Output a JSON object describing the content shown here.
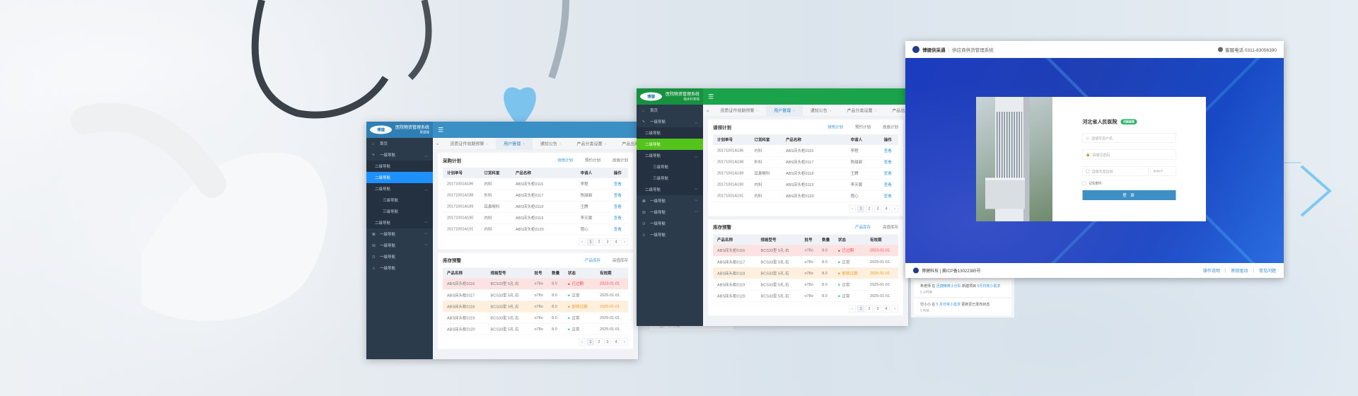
{
  "colors": {
    "panel_a_accent": "#3a8fc4",
    "panel_a_active": "#1e90ff",
    "panel_b_accent": "#1aa34a",
    "panel_b_active": "#52c41a",
    "login_blue": "#1c3cc0",
    "login_button": "#3d8fc6"
  },
  "admin_shared": {
    "logo_text": "博健",
    "system_name": "医院物资管理系统",
    "sidebar": [
      {
        "label": "首页",
        "level": 1,
        "icon": "home-icon"
      },
      {
        "label": "一级导航",
        "level": 1,
        "icon": "edit-icon",
        "chevron": "up"
      },
      {
        "label": "二级导航",
        "level": 2
      },
      {
        "label": "二级导航",
        "level": 2,
        "active": true
      },
      {
        "label": "二级导航",
        "level": 2,
        "chevron": "up"
      },
      {
        "label": "三级导航",
        "level": 3
      },
      {
        "label": "三级导航",
        "level": 3
      },
      {
        "label": "二级导航",
        "level": 2,
        "chevron": "down"
      },
      {
        "label": "一级导航",
        "level": 1,
        "icon": "grid-icon",
        "chevron": "down"
      },
      {
        "label": "一级导航",
        "level": 1,
        "icon": "table-icon",
        "chevron": "down"
      },
      {
        "label": "一级导航",
        "level": 1,
        "icon": "clock-icon"
      },
      {
        "label": "一级导航",
        "level": 1,
        "icon": "warning-icon"
      }
    ],
    "tabs": [
      {
        "label": "资质证件效期预警"
      },
      {
        "label": "用户管理",
        "active": true
      },
      {
        "label": "通知公告"
      },
      {
        "label": "产品分类设置"
      },
      {
        "label": "产品出库"
      }
    ],
    "plan_tabs": [
      "领用计划",
      "预约计划",
      "高值计划"
    ],
    "plan_columns": [
      "计划单号",
      "订货科室",
      "产品名称",
      "申请人",
      "操作"
    ],
    "plan_rows": [
      [
        "20171001A186",
        "内科",
        "ABS床头柜0116",
        "李程",
        "查看"
      ],
      [
        "20171001A188",
        "外科",
        "ABS床头柜0117",
        "陈甜甜",
        "查看"
      ],
      [
        "20171001A189",
        "耳鼻喉科",
        "ABS床头柜0118",
        "王腾",
        "查看"
      ],
      [
        "20171001A190",
        "内科",
        "ABS床头柜0119",
        "李天翼",
        "查看"
      ],
      [
        "20171001A191",
        "内科",
        "ABS床头柜0120",
        "程心",
        "查看"
      ]
    ],
    "stock_title": "库存预警",
    "stock_tabs": [
      "产品库存",
      "高值库存"
    ],
    "stock_columns": [
      "产品名称",
      "规格型号",
      "批号",
      "数量",
      "状态",
      "有效期"
    ],
    "stock_rows": [
      {
        "cells": [
          "ABS床头柜0116",
          "BCS33型 5孔 右",
          "o78o",
          "8.0",
          "已过期",
          "2023-01-01"
        ],
        "status": "expired"
      },
      {
        "cells": [
          "ABS床头柜0117",
          "BCS33型 5孔 右",
          "o78o",
          "8.0",
          "正常",
          "2025-01-01"
        ],
        "status": "normal"
      },
      {
        "cells": [
          "ABS床头柜0118",
          "BCS33型 5孔 右",
          "o78o",
          "8.0",
          "即将过期",
          "2025-01-01"
        ],
        "status": "expiring"
      },
      {
        "cells": [
          "ABS床头柜0119",
          "BCS33型 5孔 右",
          "o78o",
          "8.0",
          "正常",
          "2025-01-01"
        ],
        "status": "normal"
      },
      {
        "cells": [
          "ABS床头柜0120",
          "BCS33型 5孔 右",
          "o78o",
          "8.0",
          "正常",
          "2025-01-01"
        ],
        "status": "normal"
      }
    ],
    "pagination": [
      "‹",
      "1",
      "2",
      "3",
      "4",
      "›"
    ]
  },
  "panels": [
    {
      "subtitle": "管理端",
      "plan_title": "采购计划"
    },
    {
      "subtitle": "临床科室端",
      "plan_title": "请领计划"
    }
  ],
  "login": {
    "brand": "博健供采通",
    "system": "供应商供货管理系统",
    "phone": "客服电话 0311-83056390",
    "hospital": "河北省人民医院",
    "badge": "切换医院",
    "username_placeholder": "请填写用户名",
    "password_placeholder": "请填写密码",
    "captcha_placeholder": "请填写验证码",
    "captcha": "6+8=?",
    "remember": "记住密码",
    "submit": "登 录",
    "footer_company": "博健科技 | 冀ICP备13022385号",
    "footer_links": [
      "操作说明",
      "密钥驱动",
      "常见问题"
    ]
  },
  "activity": [
    {
      "user": "朱老师",
      "pre": " 在 ",
      "team": "迅捷精英小分队",
      "mid": " 新建项目 ",
      "target": "5月日常小需求",
      "post": "",
      "time": "5 小时前"
    },
    {
      "user": "付小小",
      "pre": " 在 ",
      "team": "5 月日常小需求",
      "mid": " 更新至已发布状态",
      "target": "",
      "post": "",
      "time": "3 天前"
    }
  ],
  "ghost_item": "生产许可证"
}
